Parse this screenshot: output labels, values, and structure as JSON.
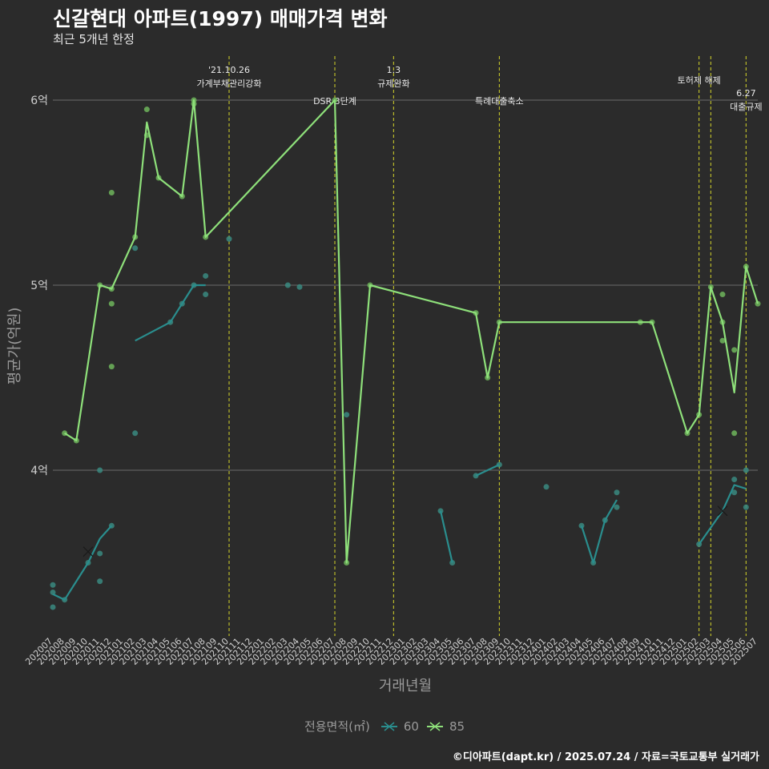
{
  "title": "신갈현대 아파트(1997) 매매가격 변화",
  "subtitle": "최근 5개년 한정",
  "caption": "©디아파트(dapt.kr) / 2025.07.24 / 자료=국토교통부 실거래가",
  "colors": {
    "background": "#2b2b2b",
    "grid": "#6b6b6b",
    "vline": "#d4d42a",
    "series60": "#2a8e8e",
    "series85": "#8ee07a",
    "series60_point": "#3a8a80",
    "series85_point": "#6fb55c"
  },
  "chart_data": {
    "type": "line",
    "title": "신갈현대 아파트(1997) 매매가격 변화",
    "xlabel": "거래년월",
    "ylabel": "평균가(억원)",
    "ylim": [
      3.15,
      6.25
    ],
    "yticks": [
      4,
      5,
      6
    ],
    "ytick_labels": [
      "4억",
      "5억",
      "6억"
    ],
    "categories": [
      "202007",
      "202008",
      "202009",
      "202010",
      "202011",
      "202012",
      "202101",
      "202102",
      "202103",
      "202104",
      "202105",
      "202106",
      "202107",
      "202108",
      "202109",
      "202110",
      "202111",
      "202112",
      "202201",
      "202202",
      "202203",
      "202204",
      "202205",
      "202206",
      "202207",
      "202208",
      "202209",
      "202210",
      "202211",
      "202212",
      "202301",
      "202302",
      "202303",
      "202304",
      "202305",
      "202306",
      "202307",
      "202308",
      "202309",
      "202310",
      "202311",
      "202312",
      "202401",
      "202402",
      "202403",
      "202404",
      "202405",
      "202406",
      "202407",
      "202408",
      "202409",
      "202410",
      "202411",
      "202412",
      "202501",
      "202502",
      "202503",
      "202504",
      "202505",
      "202506",
      "202507"
    ],
    "legend_title": "전용면적(㎡)",
    "series": [
      {
        "name": "60",
        "line_segments": [
          [
            [
              0,
              3.33
            ],
            [
              1,
              3.3
            ],
            [
              3,
              3.5
            ],
            [
              4,
              3.63
            ],
            [
              5,
              3.7
            ]
          ],
          [
            [
              7,
              4.7
            ],
            [
              10,
              4.8
            ],
            [
              11,
              4.9
            ],
            [
              12,
              5.0
            ],
            [
              13,
              5.0
            ]
          ],
          [
            [
              33,
              3.78
            ],
            [
              34,
              3.5
            ]
          ],
          [
            [
              36,
              3.97
            ],
            [
              38,
              4.03
            ]
          ],
          [
            [
              45,
              3.7
            ],
            [
              46,
              3.5
            ],
            [
              47,
              3.73
            ],
            [
              48,
              3.84
            ]
          ],
          [
            [
              55,
              3.6
            ],
            [
              57,
              3.78
            ],
            [
              58,
              3.92
            ],
            [
              59,
              3.9
            ]
          ]
        ],
        "points": [
          [
            0,
            3.38
          ],
          [
            0,
            3.34
          ],
          [
            0,
            3.26
          ],
          [
            1,
            3.3
          ],
          [
            3,
            3.5
          ],
          [
            4,
            4.0
          ],
          [
            4,
            3.55
          ],
          [
            4,
            3.4
          ],
          [
            5,
            3.7
          ],
          [
            7,
            5.2
          ],
          [
            7,
            4.2
          ],
          [
            10,
            4.8
          ],
          [
            11,
            4.9
          ],
          [
            12,
            5.0
          ],
          [
            13,
            5.05
          ],
          [
            13,
            4.95
          ],
          [
            15,
            5.25
          ],
          [
            20,
            5.0
          ],
          [
            21,
            4.99
          ],
          [
            25,
            4.3
          ],
          [
            33,
            3.78
          ],
          [
            34,
            3.5
          ],
          [
            36,
            3.97
          ],
          [
            38,
            4.03
          ],
          [
            42,
            3.91
          ],
          [
            45,
            3.7
          ],
          [
            46,
            3.5
          ],
          [
            47,
            3.73
          ],
          [
            48,
            3.88
          ],
          [
            48,
            3.8
          ],
          [
            55,
            3.6
          ],
          [
            58,
            3.95
          ],
          [
            58,
            3.88
          ],
          [
            59,
            4.0
          ],
          [
            59,
            3.8
          ]
        ],
        "cross_markers": [
          [
            3,
            3.56
          ],
          [
            57,
            3.78
          ]
        ]
      },
      {
        "name": "85",
        "line_segments": [
          [
            [
              1,
              4.2
            ],
            [
              2,
              4.16
            ],
            [
              4,
              5.0
            ],
            [
              5,
              4.98
            ],
            [
              7,
              5.26
            ],
            [
              8,
              5.88
            ],
            [
              9,
              5.58
            ],
            [
              11,
              5.48
            ],
            [
              12,
              6.0
            ],
            [
              13,
              5.26
            ],
            [
              24,
              6.0
            ],
            [
              25,
              3.5
            ],
            [
              27,
              5.0
            ],
            [
              36,
              4.85
            ],
            [
              37,
              4.5
            ],
            [
              38,
              4.8
            ],
            [
              50,
              4.8
            ],
            [
              51,
              4.8
            ],
            [
              54,
              4.2
            ],
            [
              55,
              4.3
            ],
            [
              56,
              4.99
            ],
            [
              57,
              4.8
            ],
            [
              58,
              4.42
            ],
            [
              59,
              5.1
            ],
            [
              60,
              4.9
            ]
          ]
        ],
        "points": [
          [
            1,
            4.2
          ],
          [
            2,
            4.16
          ],
          [
            4,
            5.0
          ],
          [
            5,
            4.98
          ],
          [
            5,
            5.5
          ],
          [
            5,
            4.9
          ],
          [
            5,
            4.56
          ],
          [
            7,
            5.26
          ],
          [
            8,
            5.95
          ],
          [
            8,
            5.81
          ],
          [
            9,
            5.58
          ],
          [
            11,
            5.48
          ],
          [
            12,
            6.0
          ],
          [
            12,
            5.98
          ],
          [
            13,
            5.26
          ],
          [
            24,
            6.0
          ],
          [
            25,
            3.5
          ],
          [
            27,
            5.0
          ],
          [
            36,
            4.85
          ],
          [
            37,
            4.5
          ],
          [
            38,
            4.8
          ],
          [
            50,
            4.8
          ],
          [
            51,
            4.8
          ],
          [
            54,
            4.2
          ],
          [
            55,
            4.3
          ],
          [
            56,
            4.99
          ],
          [
            57,
            4.95
          ],
          [
            57,
            4.8
          ],
          [
            57,
            4.7
          ],
          [
            58,
            4.65
          ],
          [
            58,
            4.2
          ],
          [
            59,
            5.1
          ],
          [
            60,
            4.9
          ]
        ],
        "cross_markers": []
      }
    ],
    "annotations": [
      {
        "x": 15,
        "lines": [
          "'21.10.26",
          "가계부채관리강화"
        ],
        "level": 0
      },
      {
        "x": 24,
        "lines": [
          "DSR 3단계"
        ],
        "level": 2
      },
      {
        "x": 29,
        "lines": [
          "1.3",
          "규제완화"
        ],
        "level": 0
      },
      {
        "x": 38,
        "lines": [
          "특례대출축소"
        ],
        "level": 2
      },
      {
        "x": 55,
        "lines": [
          "토허제 해제"
        ],
        "level": 1
      },
      {
        "x": 56,
        "lines": [],
        "level": 1
      },
      {
        "x": 59,
        "lines": [
          "6.27",
          "대출규제"
        ],
        "level": 3
      }
    ]
  },
  "legend": [
    {
      "label": "60"
    },
    {
      "label": "85"
    }
  ]
}
